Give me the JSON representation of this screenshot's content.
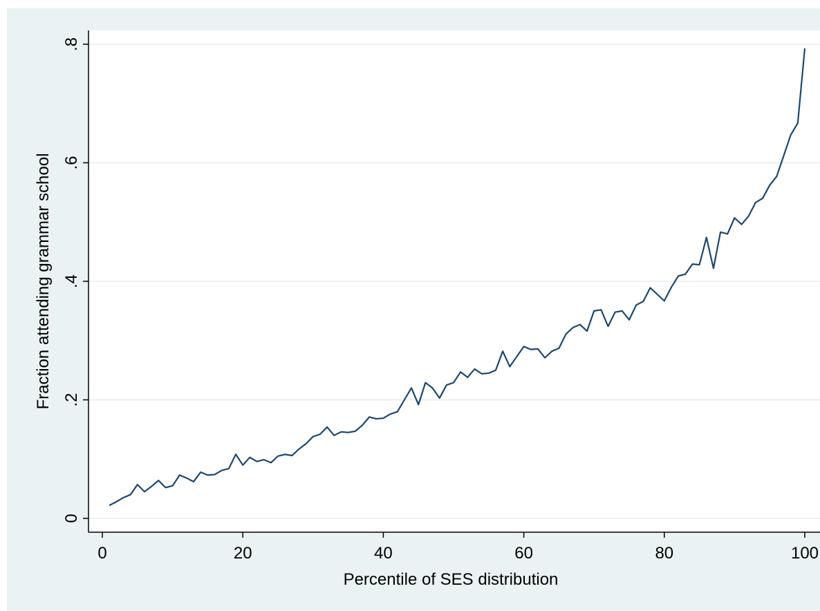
{
  "chart_data": {
    "type": "line",
    "title": "",
    "xlabel": "Percentile of SES distribution",
    "ylabel": "Fraction attending grammar school",
    "xlim": [
      0,
      100
    ],
    "ylim": [
      0,
      0.8
    ],
    "xticks": [
      {
        "value": 0,
        "label": "0"
      },
      {
        "value": 20,
        "label": "20"
      },
      {
        "value": 40,
        "label": "40"
      },
      {
        "value": 60,
        "label": "60"
      },
      {
        "value": 80,
        "label": "80"
      },
      {
        "value": 100,
        "label": "100"
      }
    ],
    "yticks": [
      {
        "value": 0,
        "label": "0"
      },
      {
        "value": 0.2,
        "label": ".2"
      },
      {
        "value": 0.4,
        "label": ".4"
      },
      {
        "value": 0.6,
        "label": ".6"
      },
      {
        "value": 0.8,
        "label": ".8"
      }
    ],
    "grid": "horizontal",
    "legend": "none",
    "colors": {
      "line": "#1a476f",
      "plot_bg": "#ffffff",
      "outer_bg": "#eaf2f3",
      "grid": "#eaf2f3"
    },
    "series": [
      {
        "x": [
          1,
          2,
          3,
          4,
          5,
          6,
          7,
          8,
          9,
          10,
          11,
          12,
          13,
          14,
          15,
          16,
          17,
          18,
          19,
          20,
          21,
          22,
          23,
          24,
          25,
          26,
          27,
          28,
          29,
          30,
          31,
          32,
          33,
          34,
          35,
          36,
          37,
          38,
          39,
          40,
          41,
          42,
          43,
          44,
          45,
          46,
          47,
          48,
          49,
          50,
          51,
          52,
          53,
          54,
          55,
          56,
          57,
          58,
          59,
          60,
          61,
          62,
          63,
          64,
          65,
          66,
          67,
          68,
          69,
          70,
          71,
          72,
          73,
          74,
          75,
          76,
          77,
          78,
          79,
          80,
          81,
          82,
          83,
          84,
          85,
          86,
          87,
          88,
          89,
          90,
          91,
          92,
          93,
          94,
          95,
          96,
          97,
          98,
          99,
          100
        ],
        "y": [
          0.022,
          0.028,
          0.035,
          0.04,
          0.057,
          0.045,
          0.054,
          0.064,
          0.052,
          0.055,
          0.073,
          0.068,
          0.062,
          0.078,
          0.073,
          0.074,
          0.081,
          0.084,
          0.108,
          0.09,
          0.103,
          0.096,
          0.099,
          0.094,
          0.105,
          0.108,
          0.106,
          0.117,
          0.126,
          0.138,
          0.142,
          0.154,
          0.14,
          0.146,
          0.145,
          0.147,
          0.157,
          0.171,
          0.168,
          0.169,
          0.176,
          0.18,
          0.2,
          0.22,
          0.192,
          0.229,
          0.22,
          0.203,
          0.225,
          0.229,
          0.247,
          0.238,
          0.252,
          0.244,
          0.245,
          0.25,
          0.282,
          0.256,
          0.273,
          0.29,
          0.285,
          0.286,
          0.271,
          0.282,
          0.287,
          0.311,
          0.322,
          0.327,
          0.316,
          0.35,
          0.352,
          0.324,
          0.348,
          0.35,
          0.335,
          0.36,
          0.366,
          0.389,
          0.378,
          0.367,
          0.39,
          0.409,
          0.412,
          0.429,
          0.428,
          0.474,
          0.422,
          0.483,
          0.48,
          0.507,
          0.496,
          0.51,
          0.533,
          0.54,
          0.562,
          0.577,
          0.612,
          0.647,
          0.667,
          0.793
        ]
      }
    ]
  }
}
